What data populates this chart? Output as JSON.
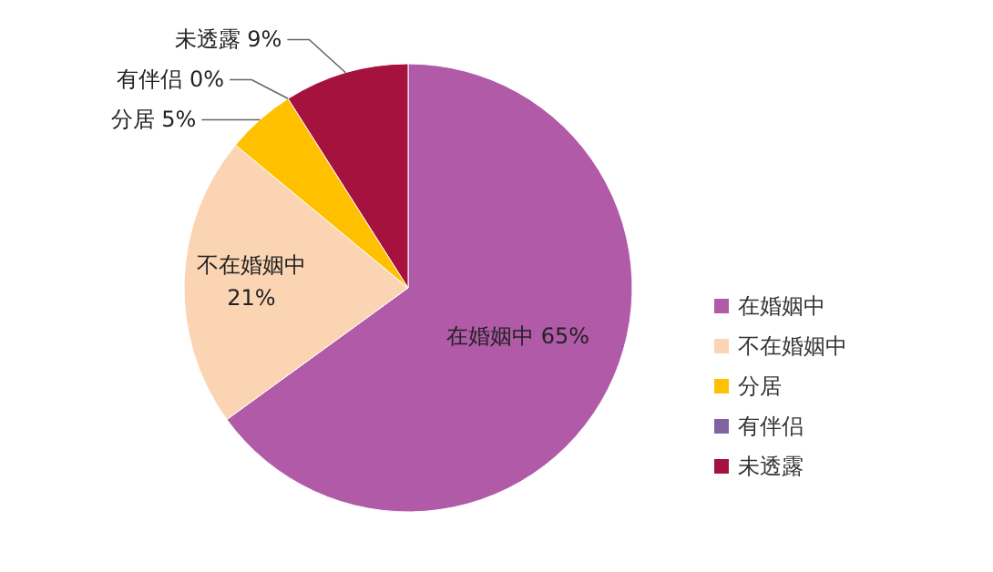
{
  "chart_data": {
    "type": "pie",
    "categories": [
      "在婚姻中",
      "不在婚姻中",
      "分居",
      "有伴侣",
      "未透露"
    ],
    "values": [
      65,
      21,
      5,
      0,
      9
    ],
    "value_labels": [
      "65%",
      "21%",
      "5%",
      "0%",
      "9%"
    ],
    "colors": [
      "#b05aa8",
      "#fbd4b4",
      "#ffc000",
      "#8064a2",
      "#a6123e"
    ],
    "data_labels": true,
    "legend": "right"
  }
}
